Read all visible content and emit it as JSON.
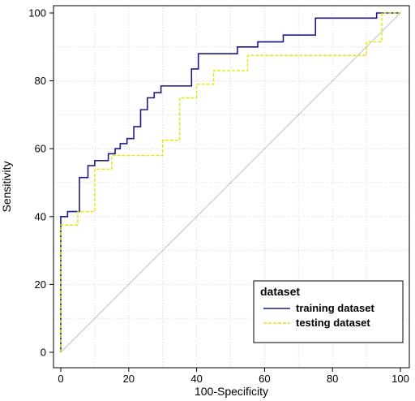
{
  "chart_data": {
    "type": "line",
    "title": "",
    "xlabel": "100-Specificity",
    "ylabel": "Sensitivity",
    "xlim": [
      0,
      100
    ],
    "ylim": [
      0,
      100
    ],
    "xticks": [
      "0",
      "20",
      "40",
      "60",
      "80",
      "100"
    ],
    "yticks": [
      "0",
      "20",
      "40",
      "60",
      "80",
      "100"
    ],
    "grid": true,
    "legend": {
      "title": "dataset",
      "position": "bottom-right"
    },
    "reference_line": {
      "from": [
        0,
        0
      ],
      "to": [
        100,
        100
      ],
      "color": "#c0c0c0"
    },
    "series": [
      {
        "name": "training dataset",
        "color": "#1a1a8c",
        "style": "solid",
        "points": [
          [
            0,
            0
          ],
          [
            0,
            40
          ],
          [
            2,
            40
          ],
          [
            2,
            41.5
          ],
          [
            5.5,
            41.5
          ],
          [
            5.5,
            51.5
          ],
          [
            8,
            51.5
          ],
          [
            8,
            55
          ],
          [
            10,
            55
          ],
          [
            10,
            56.5
          ],
          [
            14,
            56.5
          ],
          [
            14,
            58.5
          ],
          [
            16,
            58.5
          ],
          [
            16,
            60
          ],
          [
            17.5,
            60
          ],
          [
            17.5,
            61.5
          ],
          [
            19.5,
            61.5
          ],
          [
            19.5,
            63
          ],
          [
            21.5,
            63
          ],
          [
            21.5,
            66.5
          ],
          [
            23.5,
            66.5
          ],
          [
            23.5,
            71.5
          ],
          [
            25.5,
            71.5
          ],
          [
            25.5,
            75
          ],
          [
            27.5,
            75
          ],
          [
            27.5,
            76.5
          ],
          [
            29.5,
            76.5
          ],
          [
            29.5,
            78.5
          ],
          [
            38.5,
            78.5
          ],
          [
            38.5,
            83.5
          ],
          [
            40.5,
            83.5
          ],
          [
            40.5,
            88
          ],
          [
            52,
            88
          ],
          [
            52,
            90
          ],
          [
            58,
            90
          ],
          [
            58,
            91.5
          ],
          [
            65.5,
            91.5
          ],
          [
            65.5,
            93.5
          ],
          [
            75,
            93.5
          ],
          [
            75,
            98.5
          ],
          [
            93,
            98.5
          ],
          [
            93,
            100
          ],
          [
            100,
            100
          ]
        ]
      },
      {
        "name": "testing dataset",
        "color": "#e6e600",
        "style": "dashed",
        "points": [
          [
            0,
            0
          ],
          [
            0,
            37.5
          ],
          [
            5,
            37.5
          ],
          [
            5,
            41.5
          ],
          [
            10,
            41.5
          ],
          [
            10,
            54
          ],
          [
            15,
            54
          ],
          [
            15,
            58
          ],
          [
            30,
            58
          ],
          [
            30,
            62.5
          ],
          [
            35,
            62.5
          ],
          [
            35,
            75
          ],
          [
            40,
            75
          ],
          [
            40,
            79
          ],
          [
            45,
            79
          ],
          [
            45,
            83
          ],
          [
            55,
            83
          ],
          [
            55,
            87.5
          ],
          [
            90,
            87.5
          ],
          [
            90,
            91.5
          ],
          [
            94.5,
            91.5
          ],
          [
            94.5,
            100
          ],
          [
            100,
            100
          ]
        ]
      }
    ]
  }
}
